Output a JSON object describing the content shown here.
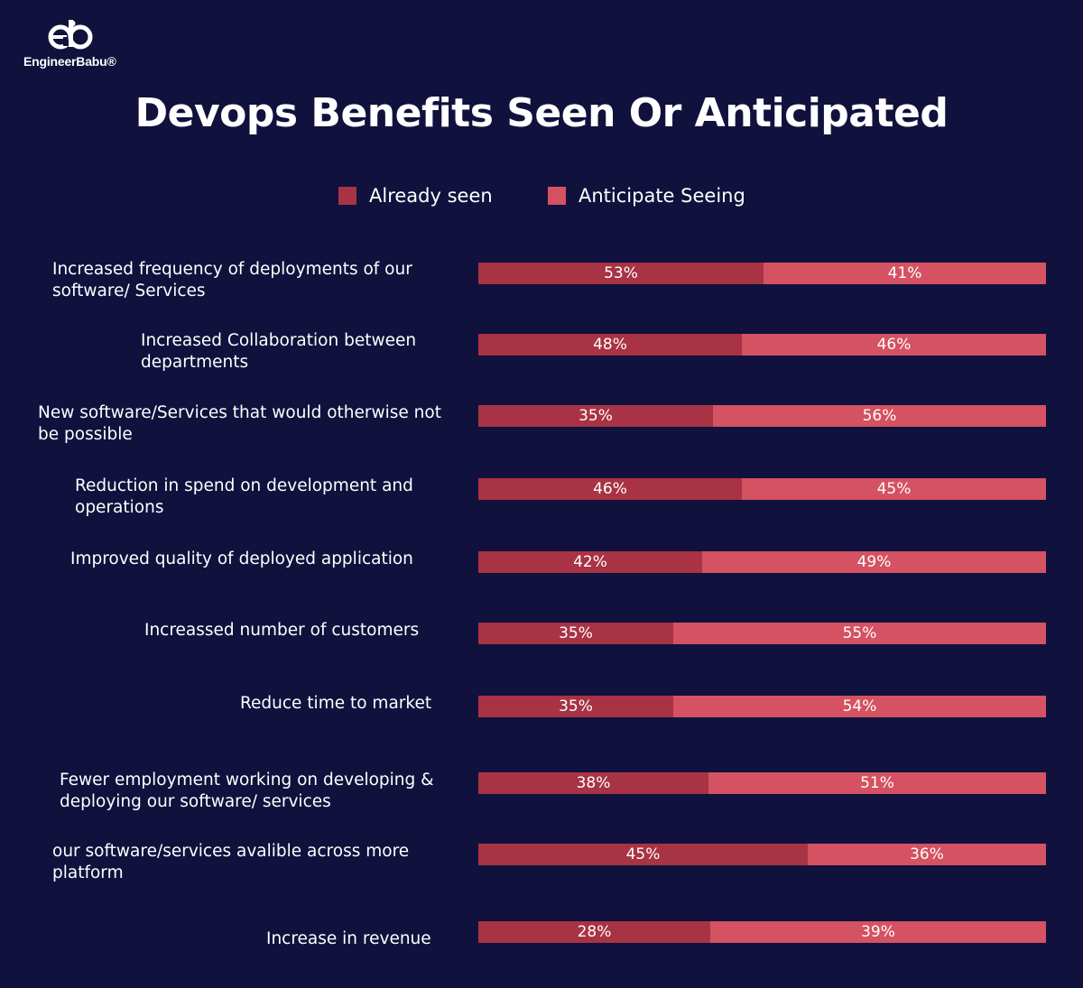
{
  "brand": {
    "name": "EngineerBabu®"
  },
  "colors": {
    "background": "#10113d",
    "already_seen": "#a83344",
    "anticipate_seeing": "#d45261"
  },
  "chart_data": {
    "type": "bar",
    "orientation": "horizontal",
    "stacked": true,
    "title": "Devops Benefits Seen Or Anticipated",
    "legend": [
      "Already seen",
      "Anticipate Seeing"
    ],
    "legend_position": "top",
    "categories": [
      "Increased frequency of deployments of our software/ Services",
      "Increased Collaboration between departments",
      "New software/Services that would  otherwise not be possible",
      "Reduction in spend on development and operations",
      "Improved quality of deployed application",
      "Increassed number of customers",
      "Reduce time to market",
      "Fewer employment working on developing & deploying our software/ services",
      "our software/services avalible across more platform",
      "Increase in revenue"
    ],
    "series": [
      {
        "name": "Already seen",
        "values": [
          53,
          48,
          35,
          46,
          42,
          35,
          35,
          38,
          45,
          28
        ]
      },
      {
        "name": "Anticipate Seeing",
        "values": [
          41,
          46,
          56,
          45,
          49,
          55,
          54,
          51,
          36,
          39
        ]
      }
    ],
    "labels_seen": [
      "53%",
      "48%",
      "35%",
      "46%",
      "42%",
      "35%",
      "35%",
      "38%",
      "45%",
      "28%"
    ],
    "labels_anticipate": [
      "41%",
      "46%",
      "56%",
      "45%",
      "49%",
      "55%",
      "54%",
      "51%",
      "36%",
      "39%"
    ],
    "seen_share_of_bar": [
      0.502,
      0.465,
      0.413,
      0.465,
      0.395,
      0.344,
      0.344,
      0.405,
      0.581,
      0.409
    ],
    "grid": false
  }
}
